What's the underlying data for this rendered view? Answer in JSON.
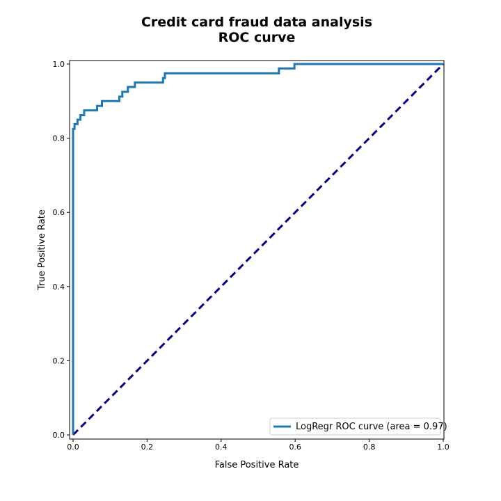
{
  "chart_data": {
    "type": "line",
    "title_lines": [
      "Credit card fraud data analysis",
      "ROC curve"
    ],
    "xlabel": "False Positive Rate",
    "ylabel": "True Positive Rate",
    "xlim": [
      0,
      1
    ],
    "ylim": [
      0,
      1
    ],
    "x_ticks": [
      "0.0",
      "0.2",
      "0.4",
      "0.6",
      "0.8",
      "1.0"
    ],
    "y_ticks": [
      "0.0",
      "0.2",
      "0.4",
      "0.6",
      "0.8",
      "1.0"
    ],
    "grid": false,
    "legend_position": "lower-right",
    "series": [
      {
        "name": "LogRegr ROC curve (area = 0.97)",
        "color": "#1f77b4",
        "style": "solid",
        "points": [
          [
            0.0,
            0.0
          ],
          [
            0.0,
            0.825
          ],
          [
            0.004,
            0.825
          ],
          [
            0.004,
            0.838
          ],
          [
            0.012,
            0.838
          ],
          [
            0.012,
            0.85
          ],
          [
            0.02,
            0.85
          ],
          [
            0.02,
            0.862
          ],
          [
            0.03,
            0.862
          ],
          [
            0.03,
            0.875
          ],
          [
            0.065,
            0.875
          ],
          [
            0.065,
            0.887
          ],
          [
            0.078,
            0.887
          ],
          [
            0.078,
            0.9
          ],
          [
            0.125,
            0.9
          ],
          [
            0.125,
            0.912
          ],
          [
            0.133,
            0.912
          ],
          [
            0.133,
            0.925
          ],
          [
            0.148,
            0.925
          ],
          [
            0.148,
            0.938
          ],
          [
            0.167,
            0.938
          ],
          [
            0.167,
            0.95
          ],
          [
            0.243,
            0.95
          ],
          [
            0.243,
            0.962
          ],
          [
            0.248,
            0.962
          ],
          [
            0.248,
            0.975
          ],
          [
            0.556,
            0.975
          ],
          [
            0.556,
            0.988
          ],
          [
            0.598,
            0.988
          ],
          [
            0.598,
            1.0
          ],
          [
            1.0,
            1.0
          ]
        ]
      },
      {
        "name": "",
        "color": "#000080",
        "style": "dashed",
        "points": [
          [
            0,
            0
          ],
          [
            1,
            1
          ]
        ]
      }
    ]
  }
}
